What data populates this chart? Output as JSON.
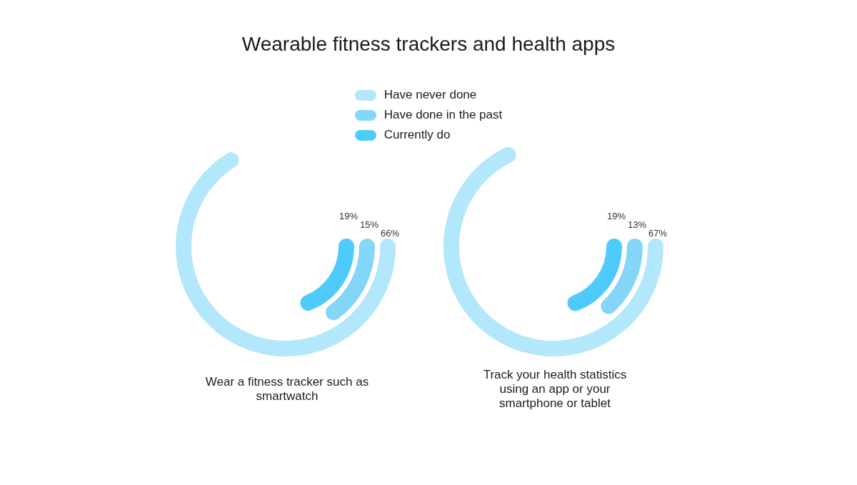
{
  "chart_data": {
    "type": "other",
    "title": "Wearable fitness trackers and health apps",
    "legend": "top",
    "categories": [
      "Wear a fitness tracker such as smartwatch",
      "Track your health statistics using an app or your smartphone or tablet"
    ],
    "series": [
      {
        "name": "Have never done",
        "color": "#b3e7fb",
        "values": [
          66,
          67
        ],
        "value_labels": [
          "66%",
          "67%"
        ]
      },
      {
        "name": "Have done in the past",
        "color": "#84d6f9",
        "values": [
          15,
          13
        ],
        "value_labels": [
          "15%",
          "13%"
        ]
      },
      {
        "name": "Currently do",
        "color": "#4fcbfb",
        "values": [
          19,
          19
        ],
        "value_labels": [
          "19%",
          "19%"
        ]
      }
    ]
  }
}
